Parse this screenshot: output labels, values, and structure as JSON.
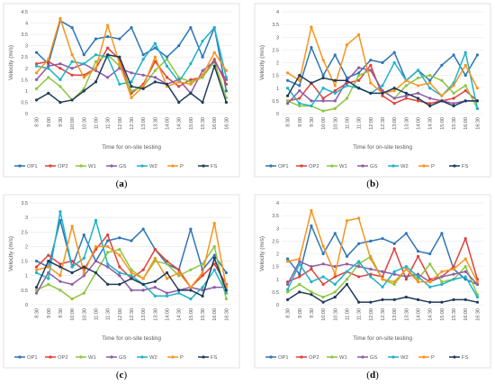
{
  "chart_data": [
    {
      "type": "line",
      "panel_label": "(a)",
      "caption_open": "(",
      "caption_letter": "a",
      "caption_close": ")",
      "xlabel": "Time for on-site testing",
      "ylabel": "Velocity (m/s)",
      "ylim": [
        0,
        4.5
      ],
      "yticks": [
        "0",
        "0.5",
        "1",
        "1.5",
        "2",
        "2.5",
        "3",
        "3.5",
        "4",
        "4.5"
      ],
      "categories": [
        "8:30",
        "9:00",
        "9:30",
        "10:00",
        "10:30",
        "11:00",
        "11:30",
        "12:00",
        "12:30",
        "13:00",
        "13:30",
        "14:00",
        "14:30",
        "15:00",
        "15:30",
        "16:00",
        "16:30"
      ],
      "series": [
        {
          "name": "OP1",
          "color": "#2E75B6",
          "values": [
            2.7,
            2.2,
            4.1,
            3.8,
            2.6,
            3.3,
            3.4,
            3.3,
            3.8,
            2.6,
            2.9,
            2.5,
            3.0,
            3.8,
            2.5,
            3.8,
            1.0
          ]
        },
        {
          "name": "OP2",
          "color": "#E0403B",
          "values": [
            2.2,
            2.3,
            2.0,
            1.7,
            1.7,
            2.0,
            2.9,
            2.4,
            0.9,
            1.3,
            2.3,
            1.6,
            1.2,
            1.5,
            1.6,
            2.4,
            1.3
          ]
        },
        {
          "name": "W1",
          "color": "#8CC63F",
          "values": [
            1.1,
            1.6,
            1.2,
            0.6,
            1.1,
            2.3,
            2.6,
            2.1,
            1.0,
            1.2,
            1.9,
            2.4,
            1.6,
            1.4,
            1.6,
            2.3,
            0.7
          ]
        },
        {
          "name": "GS",
          "color": "#8E5BA6",
          "values": [
            1.5,
            2.1,
            2.2,
            2.0,
            2.2,
            1.9,
            1.6,
            2.0,
            1.8,
            1.7,
            1.6,
            1.3,
            1.5,
            0.9,
            1.9,
            2.3,
            1.5
          ]
        },
        {
          "name": "W2",
          "color": "#1FB2C7",
          "values": [
            2.1,
            2.0,
            1.5,
            2.3,
            2.2,
            2.6,
            2.5,
            1.3,
            1.4,
            2.4,
            3.1,
            2.1,
            1.4,
            2.2,
            3.2,
            3.8,
            1.6
          ]
        },
        {
          "name": "P",
          "color": "#F7941D",
          "values": [
            1.8,
            2.4,
            4.2,
            2.6,
            1.6,
            2.0,
            3.9,
            2.2,
            0.7,
            1.2,
            2.5,
            1.2,
            1.4,
            1.3,
            1.7,
            2.7,
            1.9
          ]
        },
        {
          "name": "FS",
          "color": "#1F3B5A",
          "values": [
            0.6,
            0.9,
            0.5,
            0.6,
            1.0,
            1.4,
            2.6,
            2.5,
            1.2,
            1.1,
            1.4,
            1.3,
            0.5,
            0.9,
            0.5,
            2.1,
            0.5
          ]
        }
      ]
    },
    {
      "type": "line",
      "panel_label": "(b)",
      "caption_open": "(",
      "caption_letter": "b",
      "caption_close": ")",
      "xlabel": "Time for on-site testing",
      "ylabel": "Velocity (m/s)",
      "ylim": [
        0,
        4
      ],
      "yticks": [
        "0",
        "0.5",
        "1",
        "1.5",
        "2",
        "2.5",
        "3",
        "3.5",
        "4"
      ],
      "categories": [
        "8:30",
        "9:00",
        "9:30",
        "10:00",
        "10:30",
        "11:00",
        "11:30",
        "12:00",
        "12:30",
        "13:00",
        "13:30",
        "14:00",
        "14:30",
        "15:00",
        "15:30",
        "16:00",
        "16:30"
      ],
      "series": [
        {
          "name": "OP1",
          "color": "#2E75B6",
          "values": [
            1.3,
            1.1,
            2.6,
            1.5,
            2.3,
            1.4,
            1.6,
            2.1,
            2.0,
            2.4,
            1.3,
            1.7,
            1.3,
            1.9,
            2.3,
            1.5,
            2.3
          ]
        },
        {
          "name": "OP2",
          "color": "#E0403B",
          "values": [
            0.5,
            0.6,
            1.2,
            0.6,
            0.9,
            1.2,
            1.3,
            1.9,
            0.7,
            0.4,
            0.6,
            0.5,
            0.4,
            0.5,
            0.6,
            0.9,
            0.5
          ]
        },
        {
          "name": "W1",
          "color": "#8CC63F",
          "values": [
            0.5,
            0.3,
            0.3,
            0.1,
            0.2,
            0.6,
            1.5,
            1.7,
            0.9,
            0.6,
            1.1,
            1.4,
            1.5,
            1.3,
            0.8,
            1.1,
            0.2
          ]
        },
        {
          "name": "GS",
          "color": "#8E5BA6",
          "values": [
            0.4,
            0.9,
            0.5,
            0.5,
            0.5,
            1.3,
            1.8,
            1.7,
            0.9,
            0.6,
            0.7,
            0.8,
            0.6,
            0.5,
            0.4,
            0.5,
            0.5
          ]
        },
        {
          "name": "W2",
          "color": "#1FB2C7",
          "values": [
            1.0,
            0.4,
            0.3,
            1.0,
            0.8,
            1.1,
            1.0,
            0.8,
            1.1,
            2.0,
            1.3,
            1.7,
            1.0,
            0.7,
            1.2,
            2.4,
            0.2
          ]
        },
        {
          "name": "P",
          "color": "#F7941D",
          "values": [
            1.6,
            1.3,
            3.4,
            2.1,
            1.1,
            2.7,
            3.1,
            1.2,
            0.8,
            0.9,
            1.3,
            1.1,
            1.2,
            0.7,
            1.1,
            1.9,
            1.0
          ]
        },
        {
          "name": "FS",
          "color": "#1F3B5A",
          "values": [
            0.7,
            1.5,
            1.2,
            1.4,
            1.3,
            1.3,
            1.0,
            0.8,
            0.8,
            1.0,
            0.8,
            0.6,
            0.3,
            0.5,
            0.3,
            0.5,
            0.5
          ]
        }
      ]
    },
    {
      "type": "line",
      "panel_label": "(c)",
      "caption_open": "(",
      "caption_letter": "c",
      "caption_close": ")",
      "xlabel": "Time for on-site testing",
      "ylabel": "Velocity (m/s)",
      "ylim": [
        0,
        3.5
      ],
      "yticks": [
        "0",
        "0.5",
        "1",
        "1.5",
        "2",
        "2.5",
        "3",
        "3.5"
      ],
      "categories": [
        "8:30",
        "9:00",
        "9:30",
        "10:00",
        "10:30",
        "11:00",
        "11:30",
        "12:00",
        "12:30",
        "13:00",
        "13:30",
        "14:00",
        "14:30",
        "15:00",
        "15:30",
        "16:00",
        "16:30"
      ],
      "series": [
        {
          "name": "OP1",
          "color": "#2E75B6",
          "values": [
            1.5,
            1.3,
            2.9,
            1.3,
            2.4,
            1.5,
            2.2,
            2.3,
            2.2,
            2.6,
            1.9,
            1.4,
            1.2,
            2.6,
            1.2,
            1.7,
            1.1
          ]
        },
        {
          "name": "OP2",
          "color": "#E0403B",
          "values": [
            1.3,
            1.7,
            1.4,
            1.5,
            1.2,
            1.9,
            2.4,
            1.3,
            0.9,
            1.2,
            1.9,
            1.5,
            1.2,
            0.6,
            1.0,
            1.4,
            0.7
          ]
        },
        {
          "name": "W1",
          "color": "#8CC63F",
          "values": [
            0.5,
            0.7,
            0.5,
            0.2,
            0.4,
            1.1,
            1.8,
            1.9,
            1.2,
            0.9,
            1.5,
            1.4,
            1.0,
            1.2,
            1.4,
            2.0,
            0.2
          ]
        },
        {
          "name": "GS",
          "color": "#8E5BA6",
          "values": [
            0.4,
            1.1,
            0.8,
            0.7,
            1.0,
            1.5,
            1.3,
            1.0,
            0.5,
            0.5,
            0.6,
            0.4,
            0.5,
            0.6,
            0.5,
            0.6,
            0.6
          ]
        },
        {
          "name": "W2",
          "color": "#1FB2C7",
          "values": [
            1.1,
            0.9,
            3.2,
            1.3,
            1.6,
            2.9,
            1.4,
            1.1,
            1.0,
            0.7,
            0.3,
            0.3,
            0.4,
            0.2,
            0.6,
            1.2,
            0.4
          ]
        },
        {
          "name": "P",
          "color": "#F7941D",
          "values": [
            1.2,
            1.3,
            1.0,
            2.7,
            1.1,
            2.0,
            2.0,
            1.7,
            1.1,
            0.9,
            1.6,
            0.9,
            1.1,
            0.6,
            1.1,
            2.8,
            0.6
          ]
        },
        {
          "name": "FS",
          "color": "#1F3B5A",
          "values": [
            0.6,
            1.5,
            1.3,
            1.1,
            1.3,
            1.1,
            0.7,
            0.7,
            0.9,
            0.7,
            0.8,
            1.1,
            0.5,
            0.5,
            0.3,
            1.6,
            0.5
          ]
        }
      ]
    },
    {
      "type": "line",
      "panel_label": "(d)",
      "caption_open": "(",
      "caption_letter": "d",
      "caption_close": ")",
      "xlabel": "Time for on-site testing",
      "ylabel": "Velocity (m/s)",
      "ylim": [
        0,
        4
      ],
      "yticks": [
        "0",
        "0.5",
        "1",
        "1.5",
        "2",
        "2.5",
        "3",
        "3.5",
        "4"
      ],
      "categories": [
        "8:30",
        "9:00",
        "9:30",
        "10:00",
        "10:30",
        "11:00",
        "11:30",
        "12:00",
        "12:30",
        "13:00",
        "13:30",
        "14:00",
        "14:30",
        "15:00",
        "15:30",
        "16:00",
        "16:30"
      ],
      "series": [
        {
          "name": "OP1",
          "color": "#2E75B6",
          "values": [
            1.8,
            1.2,
            3.1,
            2.0,
            2.8,
            1.9,
            2.4,
            2.5,
            2.6,
            2.4,
            2.8,
            2.1,
            2.0,
            2.8,
            1.4,
            1.0,
            0.8
          ]
        },
        {
          "name": "OP2",
          "color": "#E0403B",
          "values": [
            0.9,
            1.1,
            1.4,
            0.8,
            1.1,
            1.3,
            1.1,
            1.2,
            1.1,
            2.2,
            1.0,
            1.9,
            1.0,
            1.1,
            1.5,
            2.6,
            1.0
          ]
        },
        {
          "name": "W1",
          "color": "#8CC63F",
          "values": [
            0.5,
            0.8,
            0.5,
            0.3,
            0.5,
            1.0,
            1.6,
            1.9,
            1.0,
            0.8,
            1.4,
            1.0,
            1.6,
            0.9,
            1.0,
            1.5,
            0.4
          ]
        },
        {
          "name": "GS",
          "color": "#8E5BA6",
          "values": [
            0.8,
            1.7,
            1.5,
            1.6,
            1.5,
            1.6,
            1.5,
            1.4,
            1.3,
            1.2,
            1.1,
            1.2,
            0.9,
            1.1,
            1.2,
            1.3,
            0.8
          ]
        },
        {
          "name": "W2",
          "color": "#1FB2C7",
          "values": [
            0.6,
            1.6,
            0.9,
            1.1,
            0.8,
            1.3,
            1.7,
            1.1,
            0.7,
            1.3,
            1.5,
            1.1,
            0.7,
            0.8,
            1.0,
            1.1,
            0.3
          ]
        },
        {
          "name": "P",
          "color": "#F7941D",
          "values": [
            1.7,
            1.8,
            3.7,
            2.3,
            1.2,
            3.3,
            3.4,
            1.8,
            1.0,
            0.9,
            1.4,
            0.9,
            0.9,
            1.3,
            1.4,
            1.8,
            0.9
          ]
        },
        {
          "name": "FS",
          "color": "#1F3B5A",
          "values": [
            0.2,
            0.5,
            0.4,
            0.1,
            0.3,
            0.8,
            0.1,
            0.1,
            0.2,
            0.2,
            0.3,
            0.2,
            0.1,
            0.1,
            0.2,
            0.2,
            0.1
          ]
        }
      ]
    }
  ]
}
